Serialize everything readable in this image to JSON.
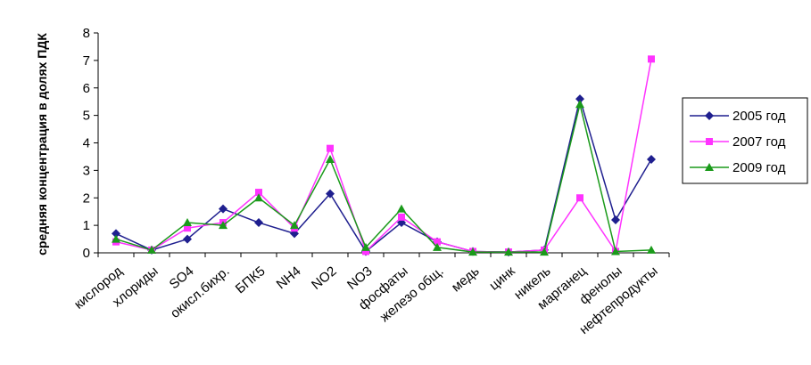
{
  "chart_data": {
    "type": "line",
    "ylabel": "средняя концентрация в долях ПДК",
    "xlabel": "",
    "ylim": [
      0,
      8
    ],
    "yticks": [
      0,
      1,
      2,
      3,
      4,
      5,
      6,
      7,
      8
    ],
    "grid": false,
    "legend_position": "right",
    "categories": [
      "кислород",
      "хлориды",
      "SO4",
      "окисл.бихр.",
      "БПК5",
      "NH4",
      "NO2",
      "NO3",
      "фосфаты",
      "железо общ.",
      "медь",
      "цинк",
      "никель",
      "марганец",
      "фенолы",
      "нефтепродукты"
    ],
    "series": [
      {
        "name": "2005 год",
        "color": "#1f1f8f",
        "marker": "diamond",
        "values": [
          0.7,
          0.1,
          0.5,
          1.6,
          1.1,
          0.7,
          2.15,
          0.05,
          1.1,
          0.4,
          0.05,
          0.03,
          0.1,
          5.6,
          1.2,
          3.4
        ]
      },
      {
        "name": "2007 год",
        "color": "#ff33ff",
        "marker": "square",
        "values": [
          0.4,
          0.1,
          0.9,
          1.1,
          2.2,
          0.9,
          3.8,
          0.05,
          1.3,
          0.4,
          0.05,
          0.03,
          0.1,
          2.0,
          0.05,
          7.05
        ]
      },
      {
        "name": "2009 год",
        "color": "#1a9a1a",
        "marker": "triangle",
        "values": [
          0.5,
          0.1,
          1.1,
          1.0,
          2.0,
          1.0,
          3.4,
          0.2,
          1.6,
          0.2,
          0.03,
          0.03,
          0.03,
          5.4,
          0.05,
          0.1
        ]
      }
    ]
  }
}
